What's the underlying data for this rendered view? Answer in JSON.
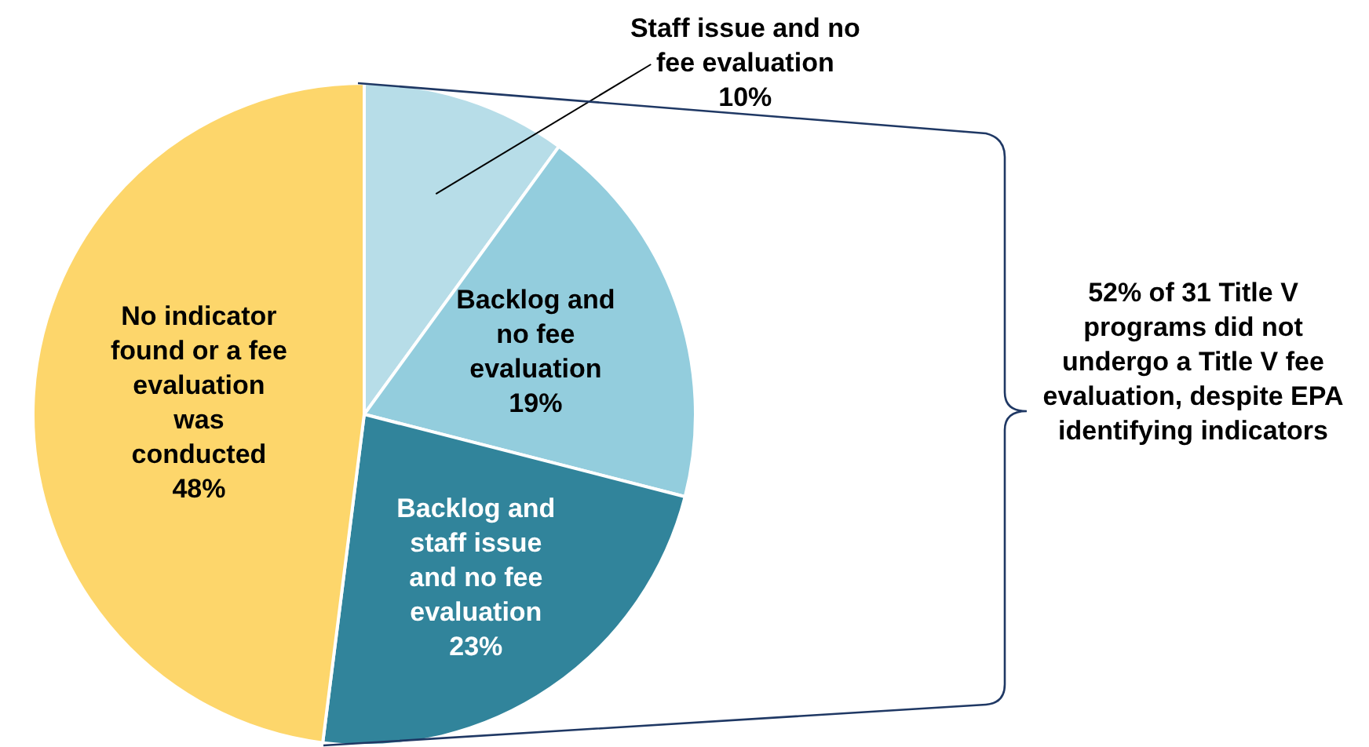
{
  "chart_data": {
    "type": "pie",
    "categories": [
      "Staff issue and no fee evaluation",
      "Backlog and no fee evaluation",
      "Backlog and staff issue and no fee evaluation",
      "No indicator found or a fee evaluation was conducted"
    ],
    "values": [
      10,
      19,
      23,
      48
    ],
    "value_labels": [
      "10%",
      "19%",
      "23%",
      "48%"
    ],
    "colors": [
      "#b7dde8",
      "#93cddd",
      "#31849b",
      "#fdd66b"
    ],
    "legend": false,
    "annotations": [
      "52% of 31 Title V programs did not undergo a Title V fee evaluation, despite EPA identifying indicators"
    ]
  }
}
